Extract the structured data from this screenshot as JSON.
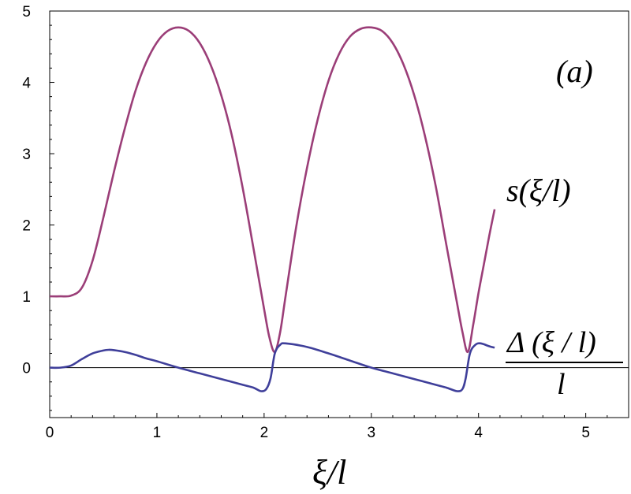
{
  "chart_data": {
    "type": "line",
    "panel_label": "(a)",
    "xlabel": "ξ/l",
    "ylabel": "",
    "xlim": [
      0,
      5.4
    ],
    "ylim": [
      -0.7,
      5
    ],
    "x_ticks": [
      0,
      1,
      2,
      3,
      4,
      5
    ],
    "y_ticks": [
      0,
      1,
      2,
      3,
      4,
      5
    ],
    "grid": false,
    "zero_line": true,
    "series": [
      {
        "name": "s(ξ/l)",
        "color": "#9b3e78",
        "points": [
          [
            0.0,
            1.0
          ],
          [
            0.1,
            1.0
          ],
          [
            0.2,
            1.01
          ],
          [
            0.3,
            1.12
          ],
          [
            0.4,
            1.5
          ],
          [
            0.5,
            2.1
          ],
          [
            0.6,
            2.75
          ],
          [
            0.7,
            3.35
          ],
          [
            0.8,
            3.88
          ],
          [
            0.9,
            4.28
          ],
          [
            1.0,
            4.56
          ],
          [
            1.1,
            4.72
          ],
          [
            1.2,
            4.77
          ],
          [
            1.3,
            4.72
          ],
          [
            1.4,
            4.55
          ],
          [
            1.5,
            4.25
          ],
          [
            1.6,
            3.82
          ],
          [
            1.7,
            3.25
          ],
          [
            1.8,
            2.52
          ],
          [
            1.9,
            1.68
          ],
          [
            2.0,
            0.82
          ],
          [
            2.05,
            0.42
          ],
          [
            2.1,
            0.22
          ],
          [
            2.15,
            0.5
          ],
          [
            2.2,
            1.0
          ],
          [
            2.3,
            1.98
          ],
          [
            2.4,
            2.8
          ],
          [
            2.5,
            3.48
          ],
          [
            2.6,
            4.02
          ],
          [
            2.7,
            4.4
          ],
          [
            2.8,
            4.64
          ],
          [
            2.9,
            4.75
          ],
          [
            3.0,
            4.77
          ],
          [
            3.1,
            4.72
          ],
          [
            3.2,
            4.55
          ],
          [
            3.3,
            4.25
          ],
          [
            3.4,
            3.82
          ],
          [
            3.5,
            3.25
          ],
          [
            3.6,
            2.55
          ],
          [
            3.7,
            1.72
          ],
          [
            3.8,
            0.9
          ],
          [
            3.85,
            0.5
          ],
          [
            3.9,
            0.22
          ],
          [
            3.95,
            0.6
          ],
          [
            4.0,
            1.05
          ],
          [
            4.05,
            1.45
          ],
          [
            4.1,
            1.85
          ],
          [
            4.15,
            2.22
          ]
        ]
      },
      {
        "name": "Δ(ξ/l)/l",
        "color": "#3f3f9a",
        "points": [
          [
            0.0,
            0.0
          ],
          [
            0.1,
            0.0
          ],
          [
            0.2,
            0.03
          ],
          [
            0.3,
            0.12
          ],
          [
            0.4,
            0.2
          ],
          [
            0.5,
            0.24
          ],
          [
            0.55,
            0.25
          ],
          [
            0.6,
            0.245
          ],
          [
            0.7,
            0.22
          ],
          [
            0.8,
            0.18
          ],
          [
            0.9,
            0.13
          ],
          [
            1.0,
            0.09
          ],
          [
            1.2,
            0.0
          ],
          [
            1.4,
            -0.08
          ],
          [
            1.6,
            -0.16
          ],
          [
            1.8,
            -0.24
          ],
          [
            1.9,
            -0.28
          ],
          [
            1.97,
            -0.33
          ],
          [
            2.02,
            -0.3
          ],
          [
            2.06,
            -0.15
          ],
          [
            2.1,
            0.2
          ],
          [
            2.15,
            0.32
          ],
          [
            2.2,
            0.34
          ],
          [
            2.4,
            0.29
          ],
          [
            2.6,
            0.2
          ],
          [
            2.8,
            0.1
          ],
          [
            3.0,
            0.0
          ],
          [
            3.2,
            -0.08
          ],
          [
            3.4,
            -0.16
          ],
          [
            3.6,
            -0.24
          ],
          [
            3.7,
            -0.28
          ],
          [
            3.8,
            -0.33
          ],
          [
            3.85,
            -0.3
          ],
          [
            3.88,
            -0.15
          ],
          [
            3.92,
            0.2
          ],
          [
            3.97,
            0.32
          ],
          [
            4.02,
            0.34
          ],
          [
            4.1,
            0.3
          ],
          [
            4.15,
            0.28
          ]
        ]
      }
    ],
    "annotations": {
      "s_label": {
        "main": "s(ξ/l)"
      },
      "delta_label": {
        "numerator": "Δ (ξ / l)",
        "denominator": "l"
      }
    }
  }
}
